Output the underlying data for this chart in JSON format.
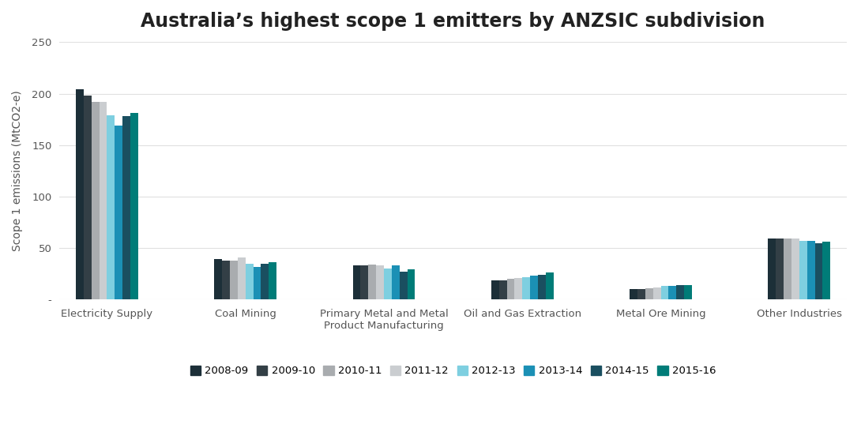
{
  "title": "Australia’s highest scope 1 emitters by ANZSIC subdivision",
  "ylabel": "Scope 1 emissions (MtCO2-e)",
  "categories": [
    "Electricity Supply",
    "Coal Mining",
    "Primary Metal and Metal\nProduct Manufacturing",
    "Oil and Gas Extraction",
    "Metal Ore Mining",
    "Other Industries"
  ],
  "years": [
    "2008-09",
    "2009-10",
    "2010-11",
    "2011-12",
    "2012-13",
    "2013-14",
    "2014-15",
    "2015-16"
  ],
  "colors": [
    "#1c2f38",
    "#333f46",
    "#a9acaf",
    "#cacdd0",
    "#7ecfe0",
    "#1b90b5",
    "#1a4f60",
    "#007c78"
  ],
  "data": {
    "Electricity Supply": [
      204,
      198,
      192,
      192,
      179,
      169,
      178,
      181
    ],
    "Coal Mining": [
      39,
      38,
      38,
      41,
      35,
      32,
      35,
      36
    ],
    "Primary Metal and Metal\nProduct Manufacturing": [
      33,
      33,
      34,
      33,
      30,
      33,
      27,
      29
    ],
    "Oil and Gas Extraction": [
      19,
      19,
      20,
      21,
      22,
      23,
      24,
      26
    ],
    "Metal Ore Mining": [
      10,
      10,
      11,
      12,
      13,
      13,
      14,
      14
    ],
    "Other Industries": [
      59,
      59,
      59,
      59,
      57,
      57,
      55,
      56
    ]
  },
  "ylim": [
    0,
    250
  ],
  "yticks": [
    0,
    50,
    100,
    150,
    200,
    250
  ],
  "background_color": "#ffffff",
  "grid_color": "#e0e0e0",
  "title_fontsize": 17,
  "axis_label_fontsize": 10,
  "tick_fontsize": 9.5,
  "legend_fontsize": 9.5
}
